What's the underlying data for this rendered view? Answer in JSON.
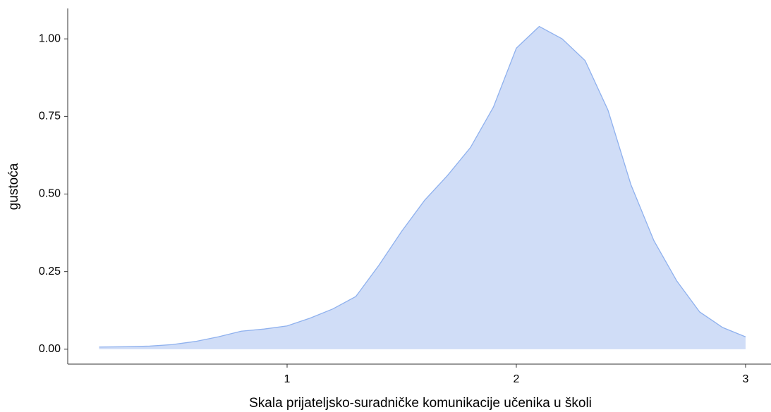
{
  "chart_data": {
    "type": "area",
    "xlabel": "Skala prijateljsko-suradničke komunikacije učenika u školi",
    "ylabel": "gustoća",
    "x": [
      0.18,
      0.3,
      0.4,
      0.5,
      0.6,
      0.7,
      0.8,
      0.9,
      1.0,
      1.1,
      1.2,
      1.3,
      1.4,
      1.5,
      1.6,
      1.7,
      1.8,
      1.9,
      2.0,
      2.1,
      2.2,
      2.3,
      2.4,
      2.5,
      2.6,
      2.7,
      2.8,
      2.9,
      3.0
    ],
    "values": [
      0.007,
      0.008,
      0.01,
      0.015,
      0.025,
      0.04,
      0.058,
      0.065,
      0.075,
      0.1,
      0.13,
      0.17,
      0.27,
      0.38,
      0.48,
      0.56,
      0.65,
      0.78,
      0.97,
      1.04,
      1.0,
      0.93,
      0.77,
      0.53,
      0.35,
      0.22,
      0.12,
      0.07,
      0.04
    ],
    "color": "#d0ddf7",
    "line_color": "#8fb1ee",
    "xlim": [
      0.043,
      3.111
    ],
    "xticks": [
      1,
      2,
      3
    ],
    "ylim": [
      -0.048,
      1.098
    ],
    "yticks": [
      {
        "value": 0,
        "label": "0.00"
      },
      {
        "value": 0.25,
        "label": "0.25"
      },
      {
        "value": 0.5,
        "label": "0.50"
      },
      {
        "value": 0.75,
        "label": "0.75"
      },
      {
        "value": 1,
        "label": "1.00"
      }
    ],
    "grid": false
  }
}
